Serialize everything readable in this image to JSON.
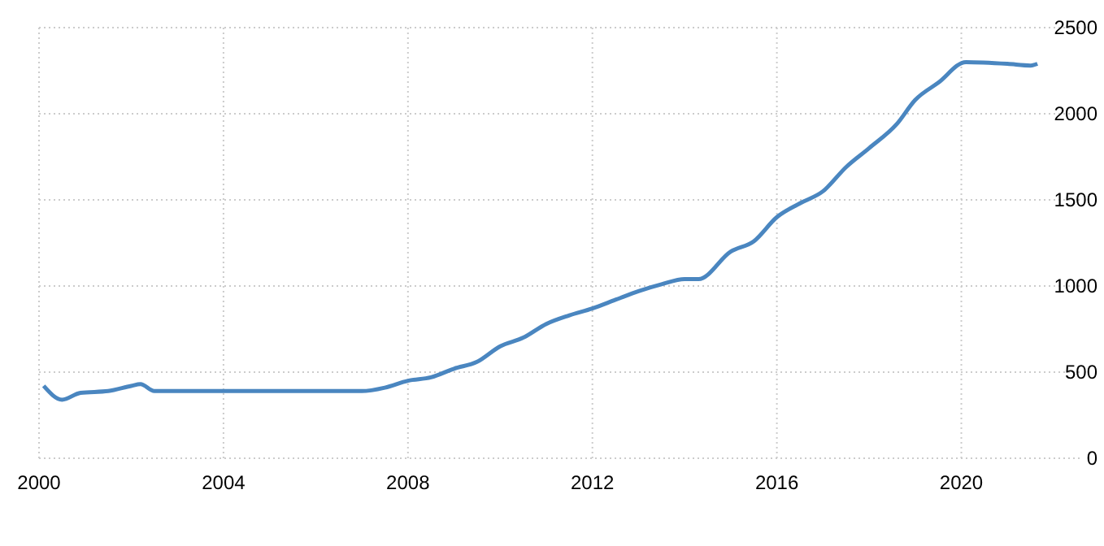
{
  "chart_data": {
    "type": "line",
    "xlim": [
      2000,
      2022.6
    ],
    "xticks": [
      2000,
      2004,
      2008,
      2012,
      2016,
      2020
    ],
    "ylim": [
      0,
      2500
    ],
    "yticks": [
      0,
      500,
      1000,
      1500,
      2000,
      2500
    ],
    "grid": true,
    "line_style": "solid",
    "marker": "none",
    "series": [
      {
        "color": "#4a86c0",
        "x": [
          2000.1,
          2000.5,
          2000.9,
          2001.5,
          2002,
          2002.2,
          2002.5,
          2003,
          2004,
          2005,
          2005.5,
          2006,
          2007,
          2007.5,
          2008,
          2008.5,
          2009,
          2009.5,
          2010,
          2010.5,
          2011,
          2011.5,
          2012,
          2012.5,
          2013,
          2013.5,
          2014,
          2014.3,
          2015,
          2015.5,
          2016,
          2016.5,
          2017,
          2017.5,
          2018,
          2018.6,
          2019,
          2019.5,
          2020.1,
          2021,
          2021.5,
          2021.65
        ],
        "values": [
          420,
          340,
          380,
          390,
          420,
          430,
          390,
          390,
          390,
          390,
          390,
          390,
          390,
          410,
          450,
          470,
          520,
          560,
          650,
          700,
          780,
          830,
          870,
          920,
          970,
          1010,
          1040,
          1040,
          1200,
          1260,
          1400,
          1480,
          1550,
          1690,
          1800,
          1940,
          2080,
          2180,
          2300,
          2290,
          2280,
          2290
        ]
      }
    ]
  }
}
